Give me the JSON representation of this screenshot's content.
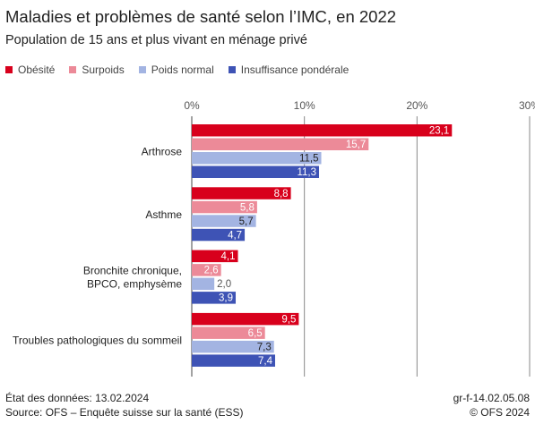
{
  "header": {
    "title": "Maladies et problèmes de santé selon l’IMC, en 2022",
    "subtitle": "Population de 15 ans et plus vivant en ménage privé"
  },
  "footer": {
    "date": "État des données: 13.02.2024",
    "source": "Source: OFS – Enquête suisse sur la santé (ESS)",
    "code": "gr-f-14.02.05.08",
    "copyright": "© OFS 2024"
  },
  "chart_data": {
    "type": "bar",
    "orientation": "horizontal",
    "categories": [
      "Arthrose",
      "Asthme",
      "Bronchite chronique,\nBPCO, emphysème",
      "Troubles pathologiques du sommeil"
    ],
    "series": [
      {
        "name": "Obésité",
        "color": "#d8001c",
        "values": [
          23.1,
          8.8,
          4.1,
          9.5
        ],
        "labels": [
          "23,1",
          "8,8",
          "4,1",
          "9,5"
        ]
      },
      {
        "name": "Surpoids",
        "color": "#ec8a98",
        "values": [
          15.7,
          5.8,
          2.6,
          6.5
        ],
        "labels": [
          "15,7",
          "5,8",
          "2,6",
          "6,5"
        ]
      },
      {
        "name": "Poids normal",
        "color": "#a3b4e2",
        "values": [
          11.5,
          5.7,
          2.0,
          7.3
        ],
        "labels": [
          "11,5",
          "5,7",
          "2,0",
          "7,3"
        ]
      },
      {
        "name": "Insuffisance pondérale",
        "color": "#3e53b5",
        "values": [
          11.3,
          4.7,
          3.9,
          7.4
        ],
        "labels": [
          "11,3",
          "4,7",
          "3,9",
          "7,4"
        ]
      }
    ],
    "xlim": [
      0,
      30
    ],
    "xticks": [
      0,
      10,
      20,
      30
    ],
    "xtick_labels": [
      "0%",
      "10%",
      "20%",
      "30%"
    ],
    "grid": true,
    "legend": "top-left"
  }
}
